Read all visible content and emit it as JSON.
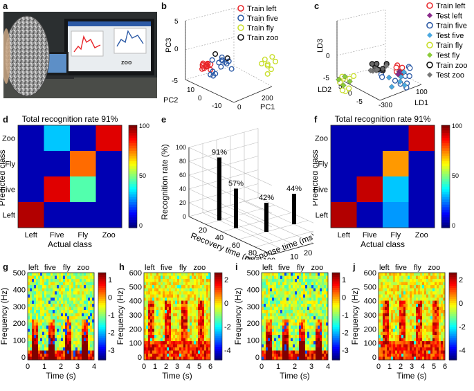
{
  "panels": {
    "a": "a",
    "b": "b",
    "c": "c",
    "d": "d",
    "e": "e",
    "f": "f",
    "g": "g",
    "h": "h",
    "i": "i",
    "j": "j"
  },
  "photo": {
    "screen_word": "zoo"
  },
  "scatter_b": {
    "axis_labels": {
      "z": "PC3",
      "x": "PC1",
      "y": "PC2"
    },
    "z_ticks": [
      "5",
      "0",
      "-5"
    ],
    "y_ticks": [
      "10",
      "0",
      "-10"
    ],
    "x_ticks": [
      "0",
      "200"
    ],
    "legend": [
      {
        "label": "Train left",
        "color": "#e8262a",
        "marker": "circle"
      },
      {
        "label": "Train five",
        "color": "#2c5aa6",
        "marker": "circle"
      },
      {
        "label": "Train fly",
        "color": "#c8de2c",
        "marker": "circle"
      },
      {
        "label": "Train zoo",
        "color": "#111111",
        "marker": "circle"
      }
    ]
  },
  "scatter_c": {
    "axis_labels": {
      "z": "LD3",
      "y": "LD2",
      "x": "LD1"
    },
    "z_ticks": [
      "0",
      "-5"
    ],
    "y_ticks": [
      "5",
      "0",
      "-5"
    ],
    "x_ticks": [
      "100",
      "-300"
    ],
    "legend": [
      {
        "label": "Train left",
        "color": "#e8262a",
        "marker": "circle"
      },
      {
        "label": "Test left",
        "color": "#8a2a8a",
        "marker": "diamond"
      },
      {
        "label": "Train five",
        "color": "#2c5aa6",
        "marker": "circle"
      },
      {
        "label": "Test five",
        "color": "#4aa8e0",
        "marker": "diamond"
      },
      {
        "label": "Train fly",
        "color": "#c8de2c",
        "marker": "circle"
      },
      {
        "label": "Test fly",
        "color": "#8ccc3a",
        "marker": "diamond"
      },
      {
        "label": "Train zoo",
        "color": "#111111",
        "marker": "circle"
      },
      {
        "label": "Test zoo",
        "color": "#777777",
        "marker": "diamond"
      }
    ]
  },
  "chart_data": [
    {
      "id": "d",
      "type": "heatmap",
      "title": "Total recognition rate 91%",
      "xlabel": "Actual class",
      "ylabel": "Predicted class",
      "x_categories": [
        "Left",
        "Five",
        "Fly",
        "Zoo"
      ],
      "y_categories": [
        "Zoo",
        "Fly",
        "Five",
        "Left"
      ],
      "values": [
        [
          0,
          30,
          0,
          95
        ],
        [
          0,
          0,
          80,
          0
        ],
        [
          0,
          95,
          45,
          0
        ],
        [
          100,
          0,
          0,
          0
        ]
      ],
      "colorbar": {
        "min": 0,
        "max": 100,
        "ticks": [
          "100",
          "50",
          "0"
        ]
      }
    },
    {
      "id": "f",
      "type": "heatmap",
      "title": "Total recognition rate 91%",
      "xlabel": "Actual class",
      "ylabel": "Predicted class",
      "x_categories": [
        "Left",
        "Five",
        "Fly",
        "Zoo"
      ],
      "y_categories": [
        "Zoo",
        "Fly",
        "Five",
        "Left"
      ],
      "values": [
        [
          0,
          0,
          0,
          97
        ],
        [
          0,
          0,
          75,
          0
        ],
        [
          0,
          98,
          30,
          0
        ],
        [
          100,
          0,
          25,
          0
        ]
      ],
      "colorbar": {
        "min": 0,
        "max": 100,
        "ticks": [
          "100",
          "50",
          "0"
        ]
      }
    },
    {
      "id": "e",
      "type": "bar",
      "zlabel": "Recognition rate (%)",
      "xlabel": "Recovery time (ms)",
      "ylabel": "Response time (ms)",
      "z_ticks": [
        "0",
        "20",
        "40",
        "60",
        "80",
        "100"
      ],
      "recovery_ticks": [
        "20",
        "40",
        "60",
        "80",
        "100"
      ],
      "response_ticks": [
        "10",
        "20",
        "30",
        "40"
      ],
      "bars": [
        {
          "recovery": 20,
          "response": 10,
          "value": 91,
          "label": "91%"
        },
        {
          "recovery": 40,
          "response": 10,
          "value": 57,
          "label": "57%"
        },
        {
          "recovery": 60,
          "response": 20,
          "value": 42,
          "label": "42%"
        },
        {
          "recovery": 60,
          "response": 40,
          "value": 44,
          "label": "44%"
        }
      ]
    },
    {
      "id": "g",
      "type": "heatmap",
      "xlabel": "Time (s)",
      "ylabel": "Frequency (Hz)",
      "x_ticks": [
        "0",
        "1",
        "2",
        "3",
        "4"
      ],
      "y_ticks": [
        "500",
        "400",
        "300",
        "200",
        "100",
        "0"
      ],
      "words": [
        "left",
        "five",
        "fly",
        "zoo"
      ],
      "colorbar": {
        "ticks": [
          "1",
          "0",
          "-1",
          "-2",
          "-3"
        ]
      }
    },
    {
      "id": "h",
      "type": "heatmap",
      "xlabel": "Time (s)",
      "ylabel": "Frequency (Hz)",
      "x_ticks": [
        "0",
        "1",
        "2",
        "3",
        "4",
        "5",
        "6"
      ],
      "y_ticks": [
        "600",
        "500",
        "400",
        "300",
        "200",
        "100",
        "0"
      ],
      "words": [
        "left",
        "five",
        "fly",
        "zoo"
      ],
      "colorbar": {
        "ticks": [
          "2",
          "0",
          "-2",
          "-4"
        ]
      }
    },
    {
      "id": "i",
      "type": "heatmap",
      "xlabel": "Time (s)",
      "ylabel": "Frequency (Hz)",
      "x_ticks": [
        "0",
        "1",
        "2",
        "3",
        "4"
      ],
      "y_ticks": [
        "500",
        "400",
        "300",
        "200",
        "100",
        "0"
      ],
      "words": [
        "left",
        "five",
        "fly",
        "zoo"
      ],
      "colorbar": {
        "ticks": [
          "1",
          "0",
          "-1",
          "-2",
          "-3"
        ]
      }
    },
    {
      "id": "j",
      "type": "heatmap",
      "xlabel": "Time (s)",
      "ylabel": "Frequency (Hz)",
      "x_ticks": [
        "0",
        "1",
        "2",
        "3",
        "4",
        "5",
        "6"
      ],
      "y_ticks": [
        "600",
        "500",
        "400",
        "300",
        "200",
        "100",
        "0"
      ],
      "words": [
        "left",
        "five",
        "fly",
        "zoo"
      ],
      "colorbar": {
        "ticks": [
          "2",
          "0",
          "-2",
          "-4"
        ]
      }
    }
  ]
}
